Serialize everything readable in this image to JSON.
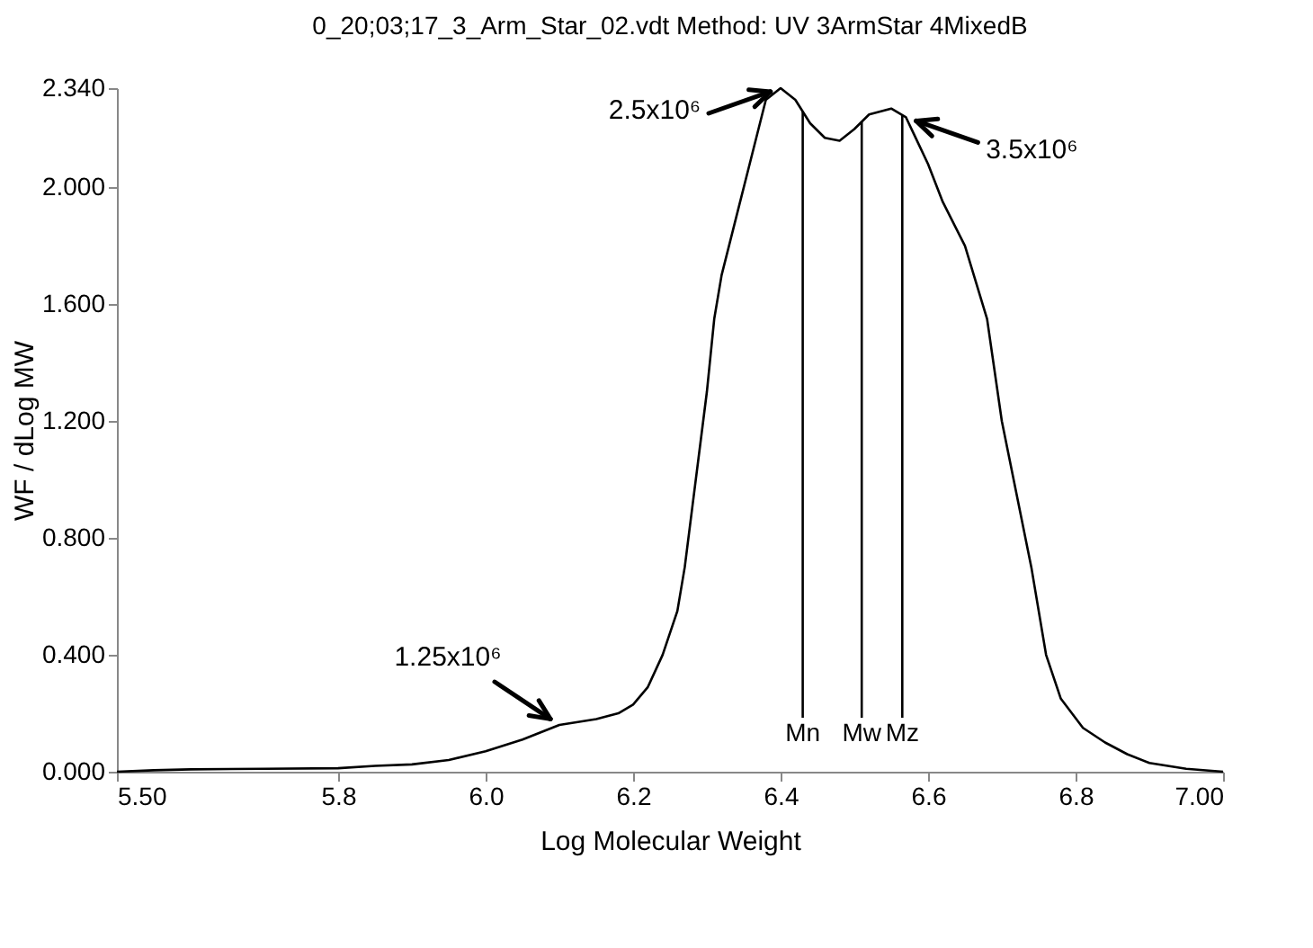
{
  "chart_data": {
    "type": "line",
    "title": "0_20;03;17_3_Arm_Star_02.vdt   Method: UV 3ArmStar 4MixedB",
    "xlabel": "Log Molecular Weight",
    "ylabel": "WF / dLog MW",
    "series": [
      {
        "color": "#000000",
        "x": [
          5.5,
          5.55,
          5.6,
          5.7,
          5.8,
          5.85,
          5.9,
          5.95,
          6.0,
          6.05,
          6.1,
          6.15,
          6.18,
          6.2,
          6.22,
          6.24,
          6.26,
          6.27,
          6.28,
          6.29,
          6.3,
          6.31,
          6.32,
          6.34,
          6.36,
          6.38,
          6.4,
          6.42,
          6.44,
          6.46,
          6.48,
          6.5,
          6.52,
          6.55,
          6.57,
          6.6,
          6.62,
          6.65,
          6.68,
          6.7,
          6.72,
          6.74,
          6.76,
          6.78,
          6.81,
          6.84,
          6.87,
          6.9,
          6.95,
          7.0
        ],
        "values": [
          0.0,
          0.005,
          0.008,
          0.01,
          0.012,
          0.02,
          0.025,
          0.04,
          0.07,
          0.11,
          0.16,
          0.18,
          0.2,
          0.23,
          0.29,
          0.4,
          0.55,
          0.7,
          0.9,
          1.1,
          1.3,
          1.55,
          1.7,
          1.9,
          2.1,
          2.3,
          2.34,
          2.3,
          2.22,
          2.17,
          2.16,
          2.2,
          2.25,
          2.27,
          2.24,
          2.08,
          1.95,
          1.8,
          1.55,
          1.2,
          0.95,
          0.7,
          0.4,
          0.25,
          0.15,
          0.1,
          0.06,
          0.03,
          0.01,
          0.0
        ]
      }
    ],
    "xlim": [
      5.5,
      7.0
    ],
    "xticks": [
      {
        "value": 5.5,
        "label": "5.50"
      },
      {
        "value": 5.8,
        "label": "5.8"
      },
      {
        "value": 6.0,
        "label": "6.0"
      },
      {
        "value": 6.2,
        "label": "6.2"
      },
      {
        "value": 6.4,
        "label": "6.4"
      },
      {
        "value": 6.6,
        "label": "6.6"
      },
      {
        "value": 6.8,
        "label": "6.8"
      },
      {
        "value": 7.0,
        "label": "7.00"
      }
    ],
    "ylim": [
      0,
      2.34
    ],
    "yticks": [
      {
        "value": 0,
        "label": "0.000"
      },
      {
        "value": 0.4,
        "label": "0.400"
      },
      {
        "value": 0.8,
        "label": "0.800"
      },
      {
        "value": 1.2,
        "label": "1.200"
      },
      {
        "value": 1.6,
        "label": "1.600"
      },
      {
        "value": 2.0,
        "label": "2.000"
      },
      {
        "value": 2.34,
        "label": "2.340"
      }
    ],
    "ref_lines": [
      {
        "axis": "x",
        "value": 6.43,
        "label": "Mn"
      },
      {
        "axis": "x",
        "value": 6.51,
        "label": "Mw"
      },
      {
        "axis": "x",
        "value": 6.565,
        "label": "Mz"
      }
    ],
    "annotations": [
      {
        "text": "2.5x10⁶",
        "x": 6.4,
        "y": 2.34
      },
      {
        "text": "3.5x10⁶",
        "x": 6.57,
        "y": 2.24
      },
      {
        "text": "1.25x10⁶",
        "x": 6.1,
        "y": 0.16
      }
    ],
    "grid": false,
    "marker": "none",
    "line_style": "solid"
  }
}
